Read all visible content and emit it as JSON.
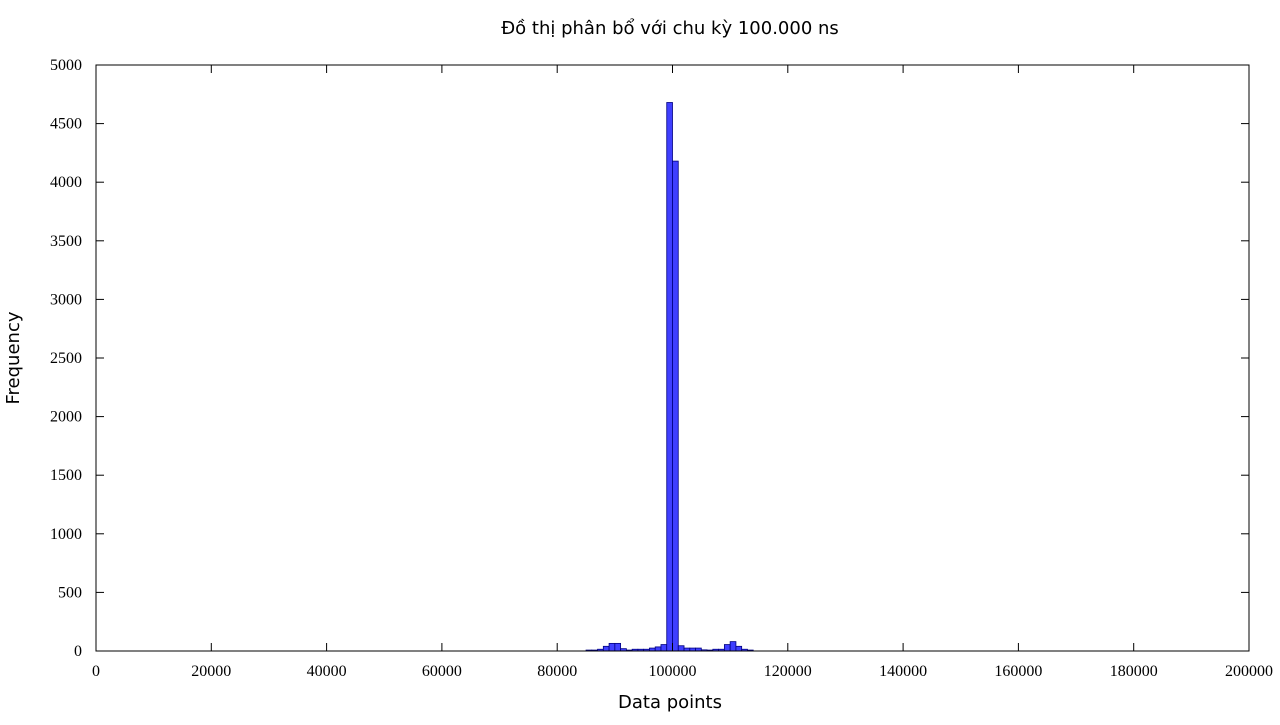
{
  "chart_data": {
    "type": "bar",
    "title": "Đồ thị phân bổ với chu kỳ 100.000 ns",
    "xlabel": "Data points",
    "ylabel": "Frequency",
    "xlim": [
      0,
      200000
    ],
    "ylim": [
      0,
      5000
    ],
    "xticks": [
      0,
      20000,
      40000,
      60000,
      80000,
      100000,
      120000,
      140000,
      160000,
      180000,
      200000
    ],
    "yticks": [
      0,
      500,
      1000,
      1500,
      2000,
      2500,
      3000,
      3500,
      4000,
      4500,
      5000
    ],
    "bin_width": 1000,
    "grid": false,
    "colors": {
      "bar_fill": "#3f3fff",
      "bar_stroke": "#000080"
    },
    "x": [
      85000,
      86000,
      87000,
      88000,
      89000,
      90000,
      91000,
      92000,
      93000,
      94000,
      95000,
      96000,
      97000,
      98000,
      99000,
      100000,
      101000,
      102000,
      103000,
      104000,
      105000,
      106000,
      107000,
      108000,
      109000,
      110000,
      111000,
      112000,
      113000
    ],
    "values": [
      8,
      8,
      15,
      40,
      65,
      65,
      20,
      8,
      15,
      15,
      15,
      25,
      35,
      55,
      4680,
      4180,
      45,
      25,
      25,
      25,
      10,
      8,
      15,
      15,
      55,
      80,
      40,
      15,
      8
    ]
  }
}
